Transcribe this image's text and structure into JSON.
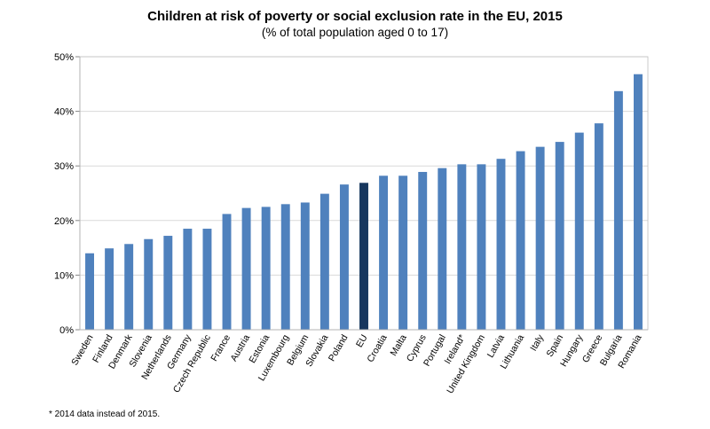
{
  "chart_data": {
    "type": "bar",
    "title": "Children at risk of poverty or social exclusion rate in the EU, 2015",
    "subtitle": "(% of total population aged 0 to 17)",
    "xlabel": "",
    "ylabel": "",
    "ylim": [
      0,
      50
    ],
    "yticks": [
      "0%",
      "10%",
      "20%",
      "30%",
      "40%",
      "50%"
    ],
    "grid": true,
    "legend": "none",
    "categories": [
      "Sweden",
      "Finland",
      "Denmark",
      "Slovenia",
      "Netherlands",
      "Germany",
      "Czech Republic",
      "France",
      "Austria",
      "Estonia",
      "Luxembourg",
      "Belgium",
      "Slovakia",
      "Poland",
      "EU",
      "Croatia",
      "Malta",
      "Cyprus",
      "Portugal",
      "Ireland*",
      "United Kingdom",
      "Latvia",
      "Lithuania",
      "Italy",
      "Spain",
      "Hungary",
      "Greece",
      "Bulgaria",
      "Romania"
    ],
    "values": [
      14.0,
      14.9,
      15.7,
      16.6,
      17.2,
      18.5,
      18.5,
      21.2,
      22.3,
      22.5,
      23.0,
      23.3,
      24.9,
      26.6,
      26.9,
      28.2,
      28.2,
      28.9,
      29.6,
      30.3,
      30.3,
      31.3,
      32.7,
      33.5,
      34.4,
      36.1,
      37.8,
      43.7,
      46.8
    ],
    "highlight_category": "EU",
    "colors": {
      "bar": "#4F81BD",
      "highlight": "#17375E",
      "grid": "#d9d9d9",
      "axis": "#868686"
    }
  },
  "footnote": "* 2014 data instead of 2015."
}
